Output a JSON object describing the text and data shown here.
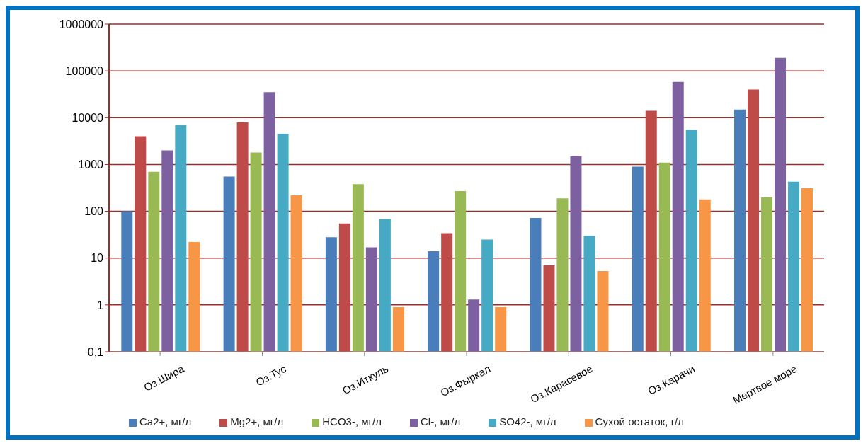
{
  "chart_data": {
    "type": "bar",
    "categories": [
      "Оз.Шира",
      "Оз.Тус",
      "Оз.Иткуль",
      "Оз.Фыркал",
      "Оз.Карасевое",
      "Оз.Карачи",
      "Мертвое море"
    ],
    "series": [
      {
        "name": "Ca2+, мг/л",
        "color": "#4a7ebb",
        "values": [
          100,
          550,
          28,
          14,
          72,
          900,
          15000
        ]
      },
      {
        "name": "Mg2+, мг/л",
        "color": "#be4b48",
        "values": [
          4000,
          8000,
          55,
          34,
          7,
          14000,
          40000
        ]
      },
      {
        "name": "HCO3-, мг/л",
        "color": "#98b954",
        "values": [
          700,
          1800,
          380,
          270,
          190,
          1100,
          200
        ]
      },
      {
        "name": "Cl-, мг/л",
        "color": "#7d60a0",
        "values": [
          2000,
          35000,
          17,
          1.3,
          1500,
          58000,
          190000
        ]
      },
      {
        "name": "SO42-, мг/л",
        "color": "#46aac5",
        "values": [
          7000,
          4500,
          68,
          25,
          30,
          5500,
          430
        ]
      },
      {
        "name": "Сухой остаток, г/л",
        "color": "#f79646",
        "values": [
          22,
          220,
          0.9,
          0.9,
          5.3,
          180,
          310
        ]
      }
    ],
    "log": "y",
    "ylim": [
      0.1,
      1000000
    ],
    "yticks": [
      {
        "value": 0.1,
        "label": "0,1"
      },
      1,
      10,
      100,
      1000,
      10000,
      100000,
      1000000
    ],
    "grid": "y",
    "legend": "bottom"
  }
}
